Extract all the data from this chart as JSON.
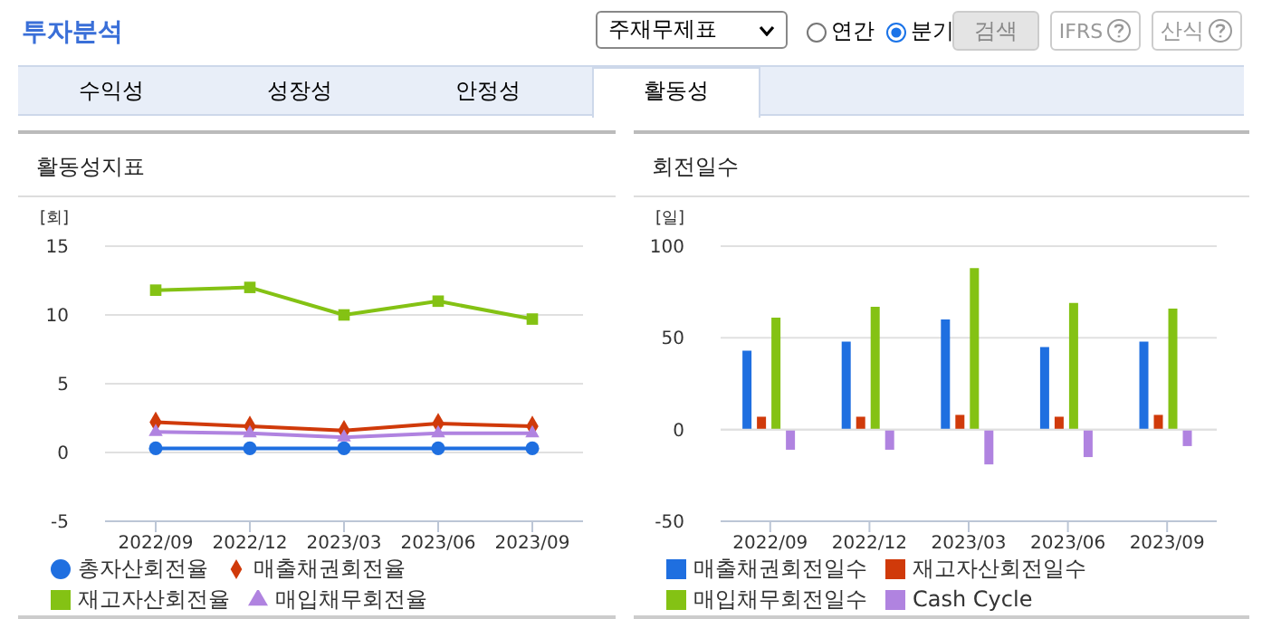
{
  "chart_data": [
    {
      "type": "other",
      "title": "투자분석",
      "annotations": [
        "주재무제표",
        "연간",
        "분기",
        "검색",
        "IFRS",
        "산식",
        "수익성",
        "성장성",
        "안정성",
        "활동성"
      ]
    },
    {
      "type": "line",
      "title": "활동성지표",
      "ylabel": "[회]",
      "categories": [
        "2022/09",
        "2022/12",
        "2023/03",
        "2023/06",
        "2023/09"
      ],
      "ylim": [
        -5,
        15
      ],
      "yticks": [
        -5,
        0,
        5,
        10,
        15
      ],
      "grid": "y",
      "legend": "bottom",
      "series": [
        {
          "name": "총자산회전율",
          "color": "#1f6fe0",
          "marker": "circle",
          "values": [
            0.3,
            0.3,
            0.3,
            0.3,
            0.3
          ]
        },
        {
          "name": "매출채권회전율",
          "color": "#d03a0a",
          "marker": "diamond",
          "values": [
            2.2,
            1.9,
            1.6,
            2.1,
            1.9
          ]
        },
        {
          "name": "재고자산회전율",
          "color": "#84c214",
          "marker": "square",
          "values": [
            11.8,
            12.0,
            10.0,
            11.0,
            9.7
          ]
        },
        {
          "name": "매입채무회전율",
          "color": "#b083e0",
          "marker": "triangle",
          "values": [
            1.5,
            1.4,
            1.1,
            1.4,
            1.4
          ]
        }
      ]
    },
    {
      "type": "bar",
      "title": "회전일수",
      "ylabel": "[일]",
      "categories": [
        "2022/09",
        "2022/12",
        "2023/03",
        "2023/06",
        "2023/09"
      ],
      "ylim": [
        -50,
        100
      ],
      "yticks": [
        -50,
        0,
        50,
        100
      ],
      "grid": "y",
      "legend": "bottom",
      "series": [
        {
          "name": "매출채권회전일수",
          "color": "#1f6fe0",
          "values": [
            43,
            48,
            60,
            45,
            48
          ]
        },
        {
          "name": "재고자산회전일수",
          "color": "#d03a0a",
          "values": [
            7,
            7,
            8,
            7,
            8
          ]
        },
        {
          "name": "매입채무회전일수",
          "color": "#84c214",
          "values": [
            61,
            67,
            88,
            69,
            66
          ]
        },
        {
          "name": "Cash Cycle",
          "color": "#b083e0",
          "values": [
            -11,
            -11,
            -19,
            -15,
            -9
          ]
        }
      ]
    }
  ]
}
